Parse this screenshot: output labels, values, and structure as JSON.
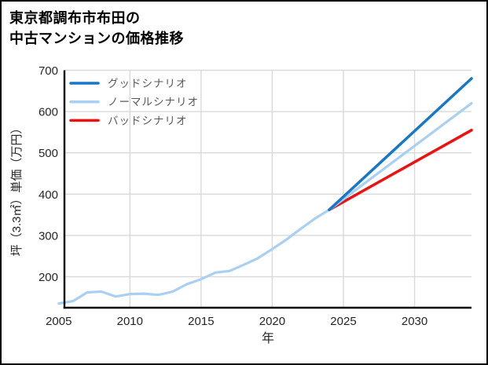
{
  "title": {
    "line1": "東京都調布市布田の",
    "line2": "中古マンションの価格推移"
  },
  "chart_data": {
    "type": "line",
    "title": "東京都調布市布田の中古マンションの価格推移",
    "xlabel": "年",
    "ylabel": "坪（3.3㎡）単価（万円）",
    "xlim": [
      2005.4,
      2034
    ],
    "ylim": [
      125,
      700
    ],
    "x_ticks": [
      2005,
      2010,
      2015,
      2020,
      2025,
      2030
    ],
    "y_ticks": [
      200,
      300,
      400,
      500,
      600,
      700
    ],
    "grid": true,
    "legend_position": "top-left",
    "colors": {
      "good": "#1878c8",
      "normal": "#a9cff3",
      "bad": "#ee1111",
      "grid": "#d9d9d9",
      "axis": "#000000",
      "tick_text": "#262626",
      "legend_text": "#595959"
    },
    "series": [
      {
        "id": "good",
        "name": "グッドシナリオ",
        "color": "#1878c8",
        "width": 3.5,
        "x": [
          2024,
          2034
        ],
        "values": [
          362,
          680
        ]
      },
      {
        "id": "normal",
        "name": "ノーマルシナリオ",
        "color": "#a9cff3",
        "width": 3.2,
        "x": [
          2005,
          2006,
          2007,
          2008,
          2009,
          2010,
          2011,
          2012,
          2013,
          2014,
          2015,
          2016,
          2017,
          2018,
          2019,
          2020,
          2021,
          2022,
          2023,
          2024,
          2034
        ],
        "values": [
          135,
          141,
          162,
          164,
          152,
          158,
          159,
          156,
          164,
          182,
          194,
          210,
          214,
          229,
          245,
          267,
          290,
          316,
          341,
          362,
          620
        ]
      },
      {
        "id": "bad",
        "name": "バッドシナリオ",
        "color": "#ee1111",
        "width": 3.5,
        "x": [
          2024,
          2034
        ],
        "values": [
          362,
          555
        ]
      }
    ]
  }
}
